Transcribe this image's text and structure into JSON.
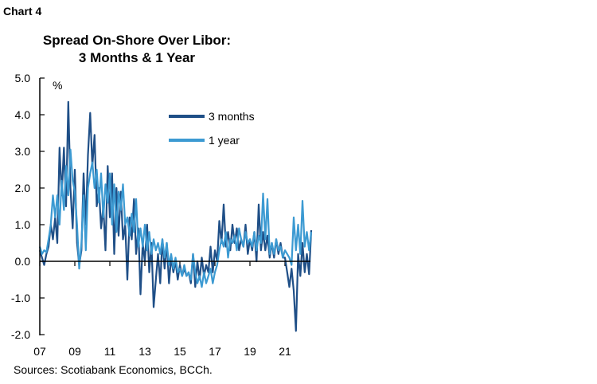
{
  "chart_label": "Chart 4",
  "source": "Sources: Scotiabank Economics, BCCh.",
  "chart_data": {
    "type": "line",
    "title": [
      "Spread On-Shore Over Libor:",
      "3 Months & 1 Year"
    ],
    "ylabel": "%",
    "xlabel": "",
    "ylim": [
      -2.0,
      5.0
    ],
    "xlim": [
      2007,
      2023
    ],
    "yticks": [
      "5.0",
      "4.0",
      "3.0",
      "2.0",
      "1.0",
      "0.0",
      "-1.0",
      "-2.0"
    ],
    "ytick_values": [
      5,
      4,
      3,
      2,
      1,
      0,
      -1,
      -2
    ],
    "xticks": [
      "07",
      "09",
      "11",
      "13",
      "15",
      "17",
      "19",
      "21"
    ],
    "xtick_values": [
      2007,
      2009,
      2011,
      2013,
      2015,
      2017,
      2019,
      2021
    ],
    "legend_position": "top-right",
    "x_start": 2007.0,
    "x_step_years": 0.125,
    "series": [
      {
        "name": "3 months",
        "color": "#1f4f87",
        "values": [
          0.3,
          0.1,
          -0.1,
          0.2,
          0.4,
          1.0,
          0.6,
          1.2,
          0.5,
          3.1,
          1.8,
          3.1,
          1.5,
          4.35,
          2.0,
          0.9,
          2.5,
          0.5,
          -0.1,
          0.3,
          2.4,
          1.0,
          2.9,
          4.05,
          2.6,
          3.45,
          1.5,
          2.0,
          0.9,
          1.5,
          0.3,
          2.6,
          1.2,
          2.4,
          0.2,
          2.0,
          0.7,
          1.9,
          0.6,
          1.0,
          -0.5,
          1.2,
          0.6,
          1.7,
          0.2,
          0.9,
          -0.9,
          0.5,
          0.0,
          1.0,
          -0.3,
          0.5,
          -1.25,
          -0.5,
          0.2,
          -0.6,
          0.6,
          -0.2,
          0.5,
          -0.6,
          0.1,
          -0.3,
          0.0,
          -0.5,
          -0.1,
          -0.4,
          -0.2,
          -0.4,
          -0.3,
          -0.6,
          0.2,
          -0.7,
          0.0,
          -0.5,
          0.1,
          -0.4,
          -0.1,
          -0.3,
          0.4,
          -0.3,
          0.3,
          0.0,
          1.1,
          0.5,
          1.55,
          0.4,
          0.8,
          0.3,
          1.0,
          0.5,
          0.9,
          0.3,
          0.6,
          0.4,
          1.0,
          0.2,
          0.6,
          0.3,
          0.8,
          0.0,
          1.55,
          0.3,
          0.8,
          0.3,
          0.7,
          0.1,
          0.5,
          0.1,
          0.6,
          0.2,
          0.5,
          0.1,
          0.1,
          -0.3,
          -0.7,
          -0.2,
          -0.8,
          -1.9,
          0.2,
          -0.4,
          0.5,
          -0.3,
          0.2,
          -0.35,
          0.85
        ]
      },
      {
        "name": "1 year",
        "color": "#3c9ad2",
        "values": [
          0.4,
          0.2,
          0.3,
          0.25,
          0.6,
          1.0,
          1.8,
          1.2,
          1.8,
          1.0,
          2.2,
          1.4,
          2.6,
          1.8,
          3.05,
          2.2,
          1.9,
          1.0,
          -0.2,
          0.5,
          1.8,
          0.3,
          2.0,
          2.4,
          2.7,
          2.0,
          2.5,
          1.6,
          2.4,
          1.2,
          2.1,
          1.6,
          2.4,
          1.0,
          2.1,
          0.8,
          1.9,
          1.4,
          2.1,
          1.0,
          1.2,
          0.7,
          1.3,
          0.8,
          1.7,
          0.4,
          0.9,
          0.4,
          1.0,
          0.3,
          0.8,
          0.2,
          0.6,
          0.3,
          0.5,
          0.2,
          0.6,
          0.1,
          0.5,
          -0.1,
          0.2,
          -0.2,
          0.1,
          -0.3,
          -0.2,
          -0.4,
          -0.1,
          -0.4,
          -0.3,
          -0.5,
          0.2,
          -0.3,
          -0.6,
          -0.4,
          -0.7,
          -0.3,
          -0.6,
          -0.4,
          -0.2,
          -0.6,
          -0.3,
          -0.1,
          0.3,
          0.6,
          0.4,
          0.8,
          0.1,
          0.6,
          0.5,
          0.7,
          0.3,
          0.9,
          0.6,
          0.4,
          0.8,
          0.5,
          0.6,
          0.4,
          0.8,
          0.3,
          0.7,
          0.5,
          1.85,
          0.6,
          1.7,
          0.2,
          0.5,
          0.2,
          0.6,
          0.3,
          0.4,
          0.1,
          0.3,
          0.2,
          0.1,
          -0.1,
          1.2,
          0.3,
          1.0,
          0.2,
          1.65,
          0.4,
          0.8,
          0.3,
          0.8
        ]
      }
    ]
  }
}
